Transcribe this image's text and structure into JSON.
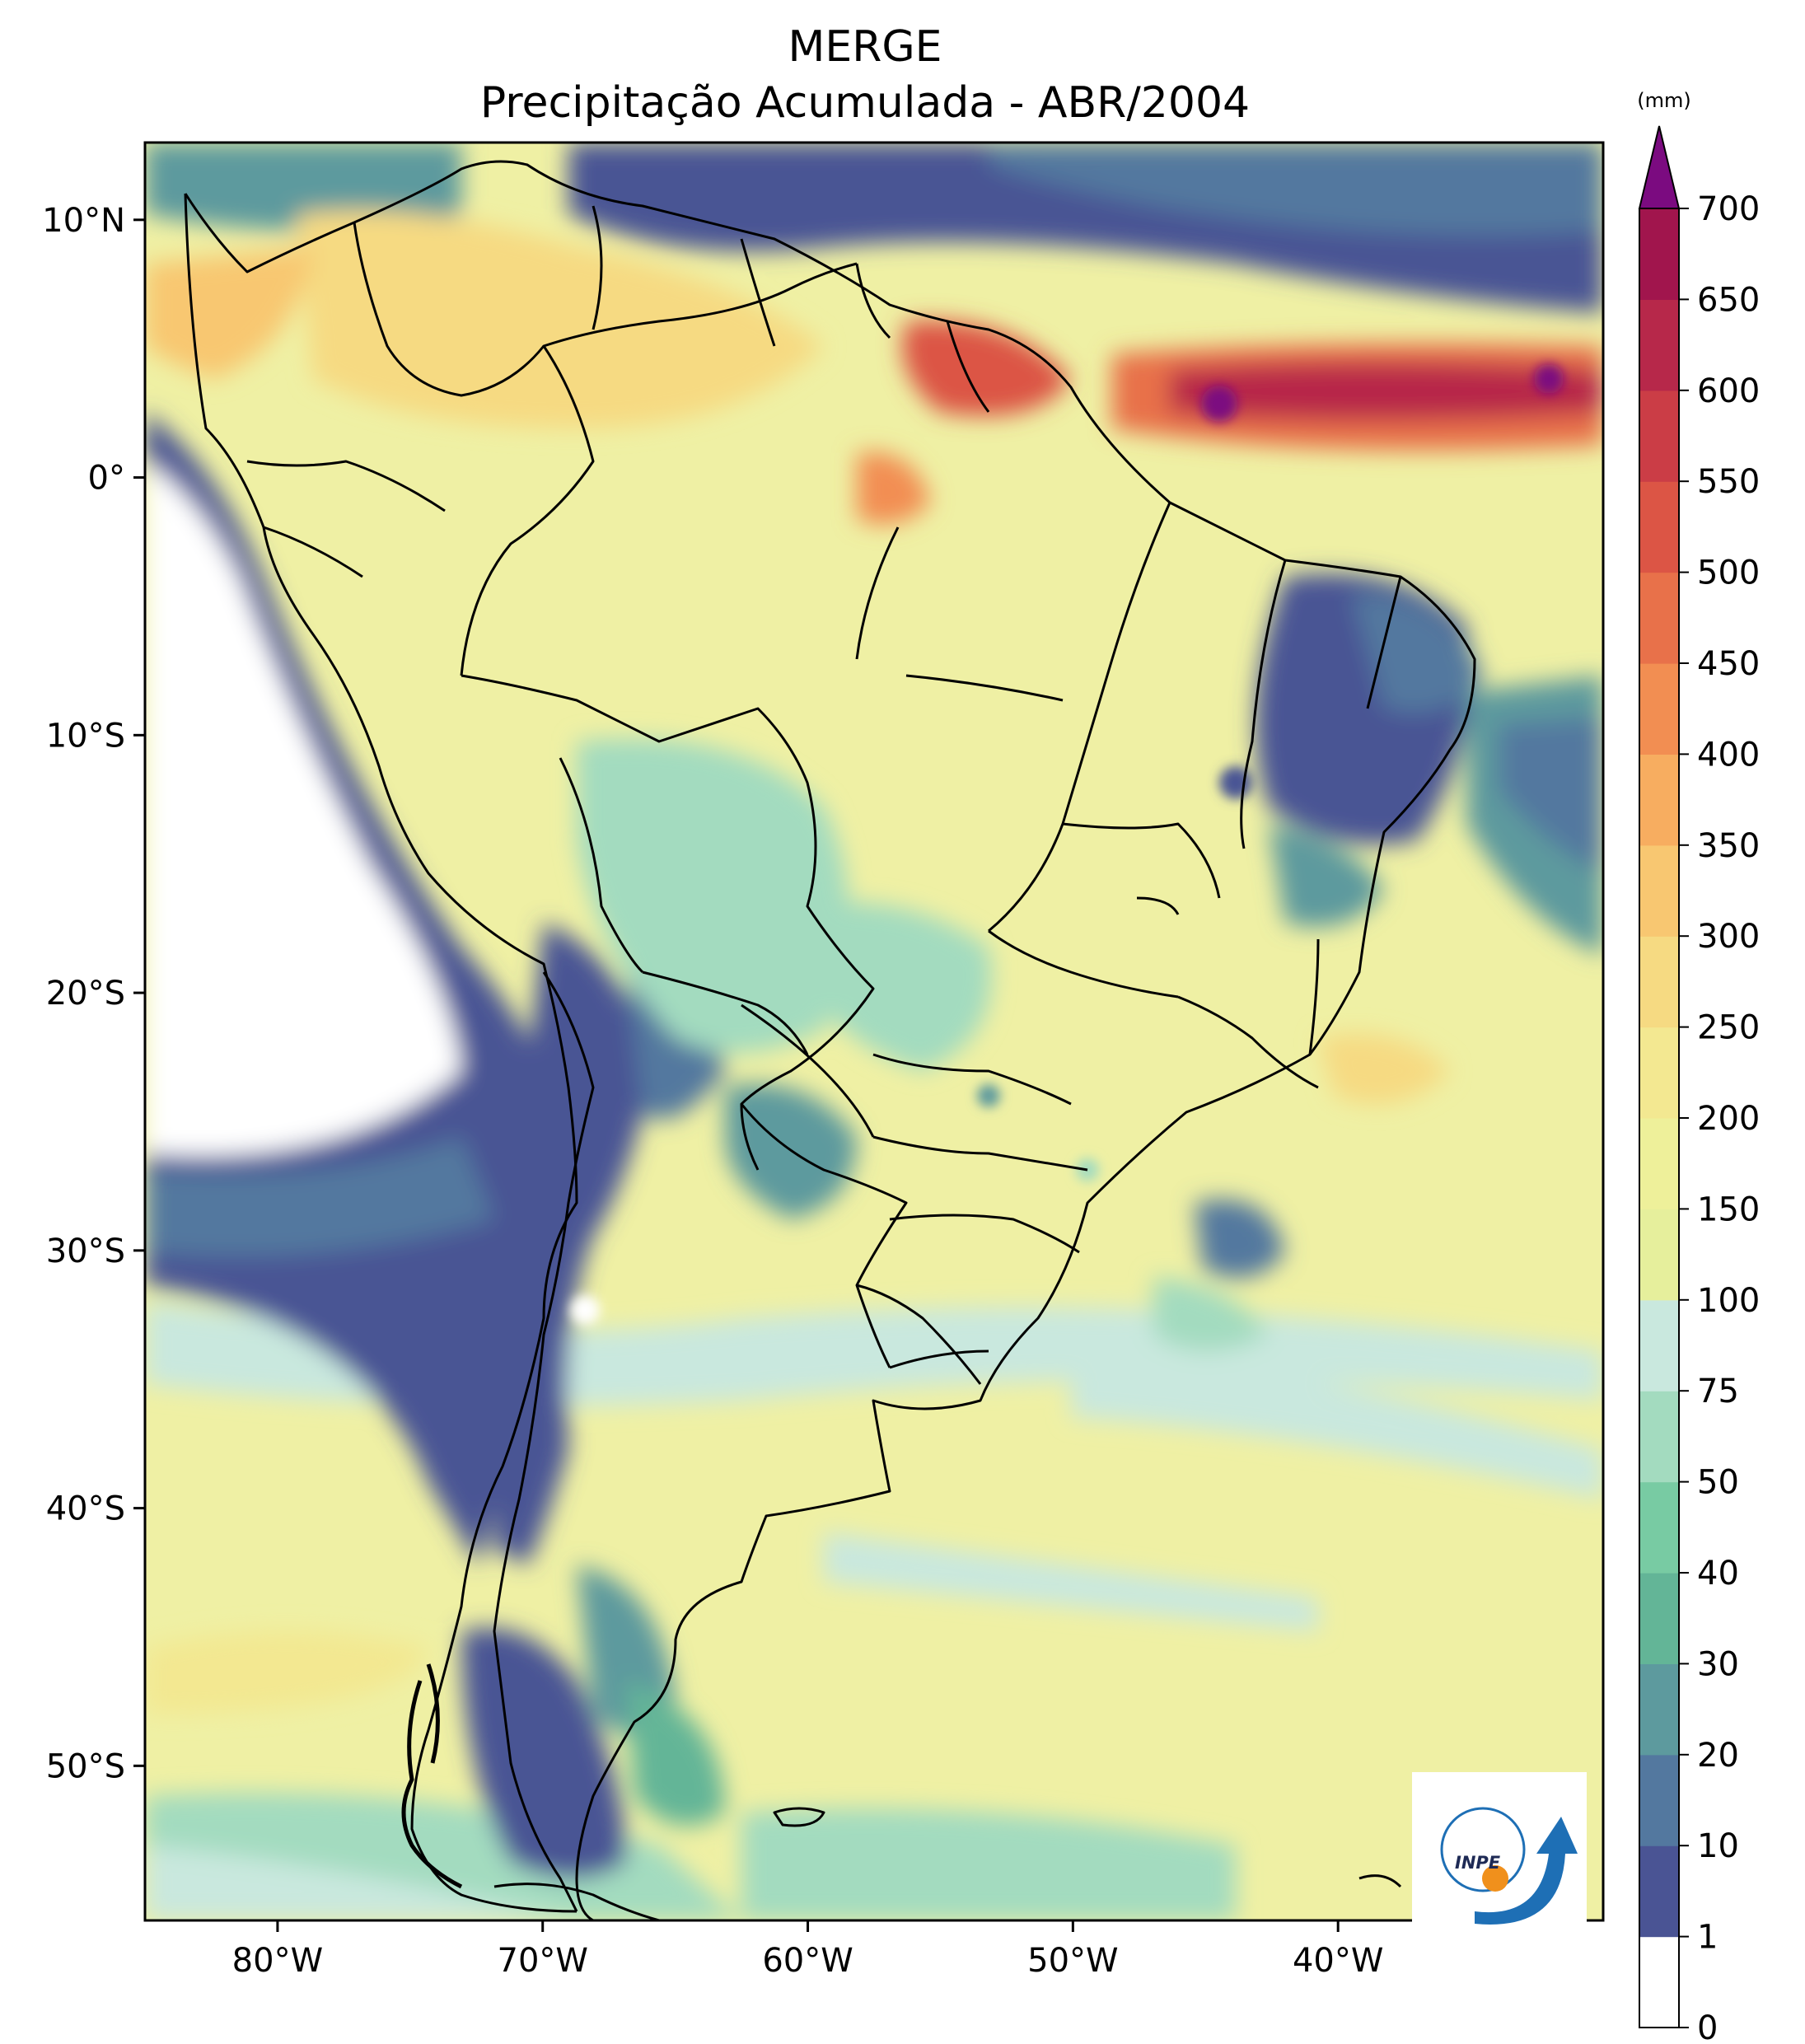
{
  "title": {
    "line1": "MERGE",
    "line2": "Precipitação Acumulada - ABR/2004"
  },
  "map": {
    "lon_range": [
      -85,
      -30
    ],
    "lat_range": [
      -56,
      13
    ],
    "lon_ticks": [
      {
        "value": -80,
        "label": "80°W"
      },
      {
        "value": -70,
        "label": "70°W"
      },
      {
        "value": -60,
        "label": "60°W"
      },
      {
        "value": -50,
        "label": "50°W"
      },
      {
        "value": -40,
        "label": "40°W"
      }
    ],
    "lat_ticks": [
      {
        "value": 10,
        "label": "10°N"
      },
      {
        "value": 0,
        "label": "0°"
      },
      {
        "value": -10,
        "label": "10°S"
      },
      {
        "value": -20,
        "label": "20°S"
      },
      {
        "value": -30,
        "label": "30°S"
      },
      {
        "value": -40,
        "label": "40°S"
      },
      {
        "value": -50,
        "label": "50°S"
      }
    ],
    "ocean_fill": "#eff0a4",
    "land_fill": "#f2e69a"
  },
  "colorbar": {
    "unit": "(mm)",
    "levels": [
      {
        "label": "0",
        "color": "#ffffff"
      },
      {
        "label": "1",
        "color": "#4a5494"
      },
      {
        "label": "10",
        "color": "#53789f"
      },
      {
        "label": "20",
        "color": "#5d9a9e"
      },
      {
        "label": "30",
        "color": "#63b597"
      },
      {
        "label": "40",
        "color": "#78cba3"
      },
      {
        "label": "50",
        "color": "#a3dbbf"
      },
      {
        "label": "75",
        "color": "#c9e8de"
      },
      {
        "label": "100",
        "color": "#e6ef9c"
      },
      {
        "label": "150",
        "color": "#eef09a"
      },
      {
        "label": "200",
        "color": "#f3e891"
      },
      {
        "label": "250",
        "color": "#f6da82"
      },
      {
        "label": "300",
        "color": "#f8c771"
      },
      {
        "label": "350",
        "color": "#f7ad60"
      },
      {
        "label": "400",
        "color": "#f28e52"
      },
      {
        "label": "450",
        "color": "#e8714a"
      },
      {
        "label": "500",
        "color": "#dc5545"
      },
      {
        "label": "550",
        "color": "#cb3d46"
      },
      {
        "label": "600",
        "color": "#b7284a"
      },
      {
        "label": "650",
        "color": "#a1154d"
      },
      {
        "label": "700",
        "color": ""
      }
    ],
    "extend_color": "#7b0b80"
  },
  "logo": {
    "text": "INPE"
  }
}
